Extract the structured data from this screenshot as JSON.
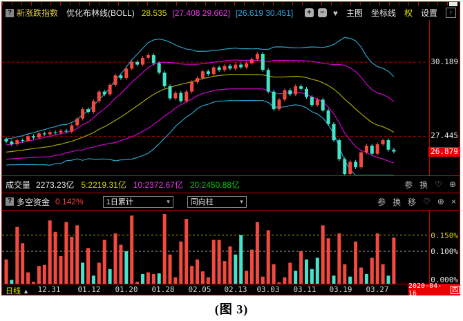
{
  "colors": {
    "up": "#f4493f",
    "down": "#45e3c9",
    "boll_mid": "#a8a800",
    "boll_inner": "#d400d4",
    "boll_outer": "#2aa2c8",
    "grid_red": "#b00000",
    "grid_yellow": "#b8b800",
    "grid_white": "#a8a8a8",
    "accent_red": "#ee0000"
  },
  "window": {
    "icons": {
      "help": "?",
      "plus": "+",
      "minus": "−",
      "heart": "♥",
      "heart_outline": "♡",
      "zoom": "⊕",
      "close": "×",
      "up_arrow": "↑",
      "triangle_up": "▲",
      "dropdown_arrow": "▾"
    },
    "header": {
      "index_name": "新涨跌指数",
      "study_name": "优化布林线(BOLL)",
      "mid_value": "28.535",
      "inner_band": "[27.408 29.662]",
      "outer_band": "[26.619 30.451]",
      "menu_main": "主图",
      "menu_axis": "坐标线",
      "menu_rights": "权",
      "menu_settings": "设置"
    },
    "volume_row": {
      "label": "成交量",
      "value": "2273.23亿",
      "ma5": "5:2219.31亿",
      "ma10": "10:2372.67亿",
      "ma20": "20:2450.88亿",
      "param": "参",
      "switch": "换"
    },
    "fund_row": {
      "label": "多空资金",
      "value": "0.142%",
      "dropdown1": "1日累计",
      "dropdown2": "同向柱",
      "param": "参",
      "switch": "换",
      "move": "移"
    },
    "main_axis": {
      "labels": [
        "30.189",
        "27.445"
      ],
      "last": "26.879"
    },
    "fund_axis": {
      "labels": [
        "0.150%",
        "0.100%",
        "0.000%"
      ]
    },
    "x_axis": {
      "period": "日线",
      "date_box": "2020-04-16",
      "weekday": "四"
    }
  },
  "caption": "(图 3)",
  "chart_data": {
    "type": [
      "candlestick",
      "bar"
    ],
    "main": {
      "type": "candlestick",
      "study": "BOLL(20) optimized: mid + inner/outer bands",
      "price_axis": {
        "max": 31.75,
        "min": 26.0
      },
      "gridlines": [
        30.189,
        27.445
      ],
      "last_price": 26.879,
      "seed_closes": [
        27.15,
        26.55,
        26.95,
        26.45,
        26.85,
        26.6,
        27.0,
        26.65,
        26.9,
        26.7,
        27.05,
        27.1
      ],
      "closes": [
        27.25,
        27.15,
        27.3,
        27.28,
        27.45,
        27.4,
        27.55,
        27.52,
        27.6,
        27.58,
        27.65,
        27.62,
        27.85,
        28.1,
        28.45,
        28.35,
        28.75,
        29.1,
        29.0,
        29.35,
        29.7,
        29.6,
        29.95,
        30.2,
        30.1,
        30.35,
        30.45,
        30.15,
        29.8,
        29.3,
        28.85,
        29.05,
        28.75,
        29.1,
        29.45,
        29.6,
        29.85,
        29.75,
        30.0,
        29.9,
        30.05,
        29.95,
        30.1,
        30.0,
        30.15,
        30.3,
        30.5,
        29.9,
        29.1,
        28.45,
        28.8,
        29.15,
        29.0,
        29.3,
        29.2,
        28.9,
        28.6,
        28.8,
        28.4,
        27.9,
        27.3,
        26.6,
        26.05,
        26.5,
        26.3,
        26.85,
        27.1,
        26.8,
        27.15,
        27.3,
        26.95,
        26.88
      ]
    },
    "fund": {
      "type": "bar",
      "unit": "%",
      "note": "negative value = cyan bar, positive = red bar; heights plotted as absolute value",
      "gridlines": [
        {
          "v": 0.15,
          "color": "yellow"
        },
        {
          "v": 0.1,
          "color": "white"
        }
      ],
      "axis": {
        "max": 0.225,
        "min": 0.0
      },
      "values": [
        0.075,
        -0.012,
        0.175,
        0.125,
        0.035,
        0.006,
        0.055,
        0.058,
        0.195,
        0.16,
        0.085,
        0.19,
        0.145,
        0.18,
        -0.065,
        0.11,
        -0.025,
        0.065,
        0.135,
        -0.045,
        0.155,
        0.12,
        -0.1,
        0.21,
        0.006,
        -0.03,
        0.035,
        0.03,
        -0.032,
        0.215,
        0.09,
        0.02,
        0.13,
        0.2,
        0.055,
        0.075,
        0.038,
        0.02,
        0.135,
        0.135,
        0.07,
        0.115,
        -0.09,
        -0.15,
        0.04,
        0.105,
        0.19,
        0.022,
        0.165,
        0.06,
        0.004,
        0.02,
        0.065,
        -0.04,
        0.1,
        -0.075,
        -0.045,
        -0.08,
        0.18,
        0.14,
        -0.025,
        0.155,
        0.06,
        -0.022,
        0.13,
        0.05,
        -0.03,
        0.08,
        0.155,
        0.06,
        -0.025,
        0.142
      ]
    },
    "x_labels": [
      "12.31",
      "01.12",
      "01.20",
      "01.28",
      "02.05",
      "02.13",
      "03.03",
      "03.11",
      "03.19",
      "03.27"
    ],
    "x_label_pos": [
      68,
      126,
      180,
      233,
      286,
      338,
      385,
      438,
      490,
      543
    ]
  }
}
